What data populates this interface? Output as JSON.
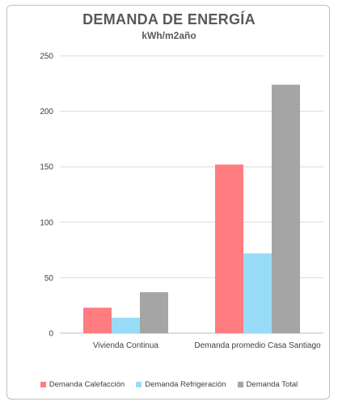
{
  "chart_data": {
    "type": "bar",
    "title": "DEMANDA DE ENERGÍA",
    "subtitle": "kWh/m2año",
    "categories": [
      "Vivienda Continua",
      "Demanda promedio Casa Santiago"
    ],
    "series": [
      {
        "name": "Demanda Calefacción",
        "color": "#ff7c80",
        "values": [
          23,
          152
        ]
      },
      {
        "name": "Demanda Refrigeración",
        "color": "#99dcf7",
        "values": [
          14,
          72
        ]
      },
      {
        "name": "Demanda Total",
        "color": "#a5a5a5",
        "values": [
          37,
          224
        ]
      }
    ],
    "ylim": [
      0,
      250
    ],
    "yticks": [
      0,
      50,
      100,
      150,
      200,
      250
    ],
    "grid": true,
    "legend_position": "bottom"
  }
}
